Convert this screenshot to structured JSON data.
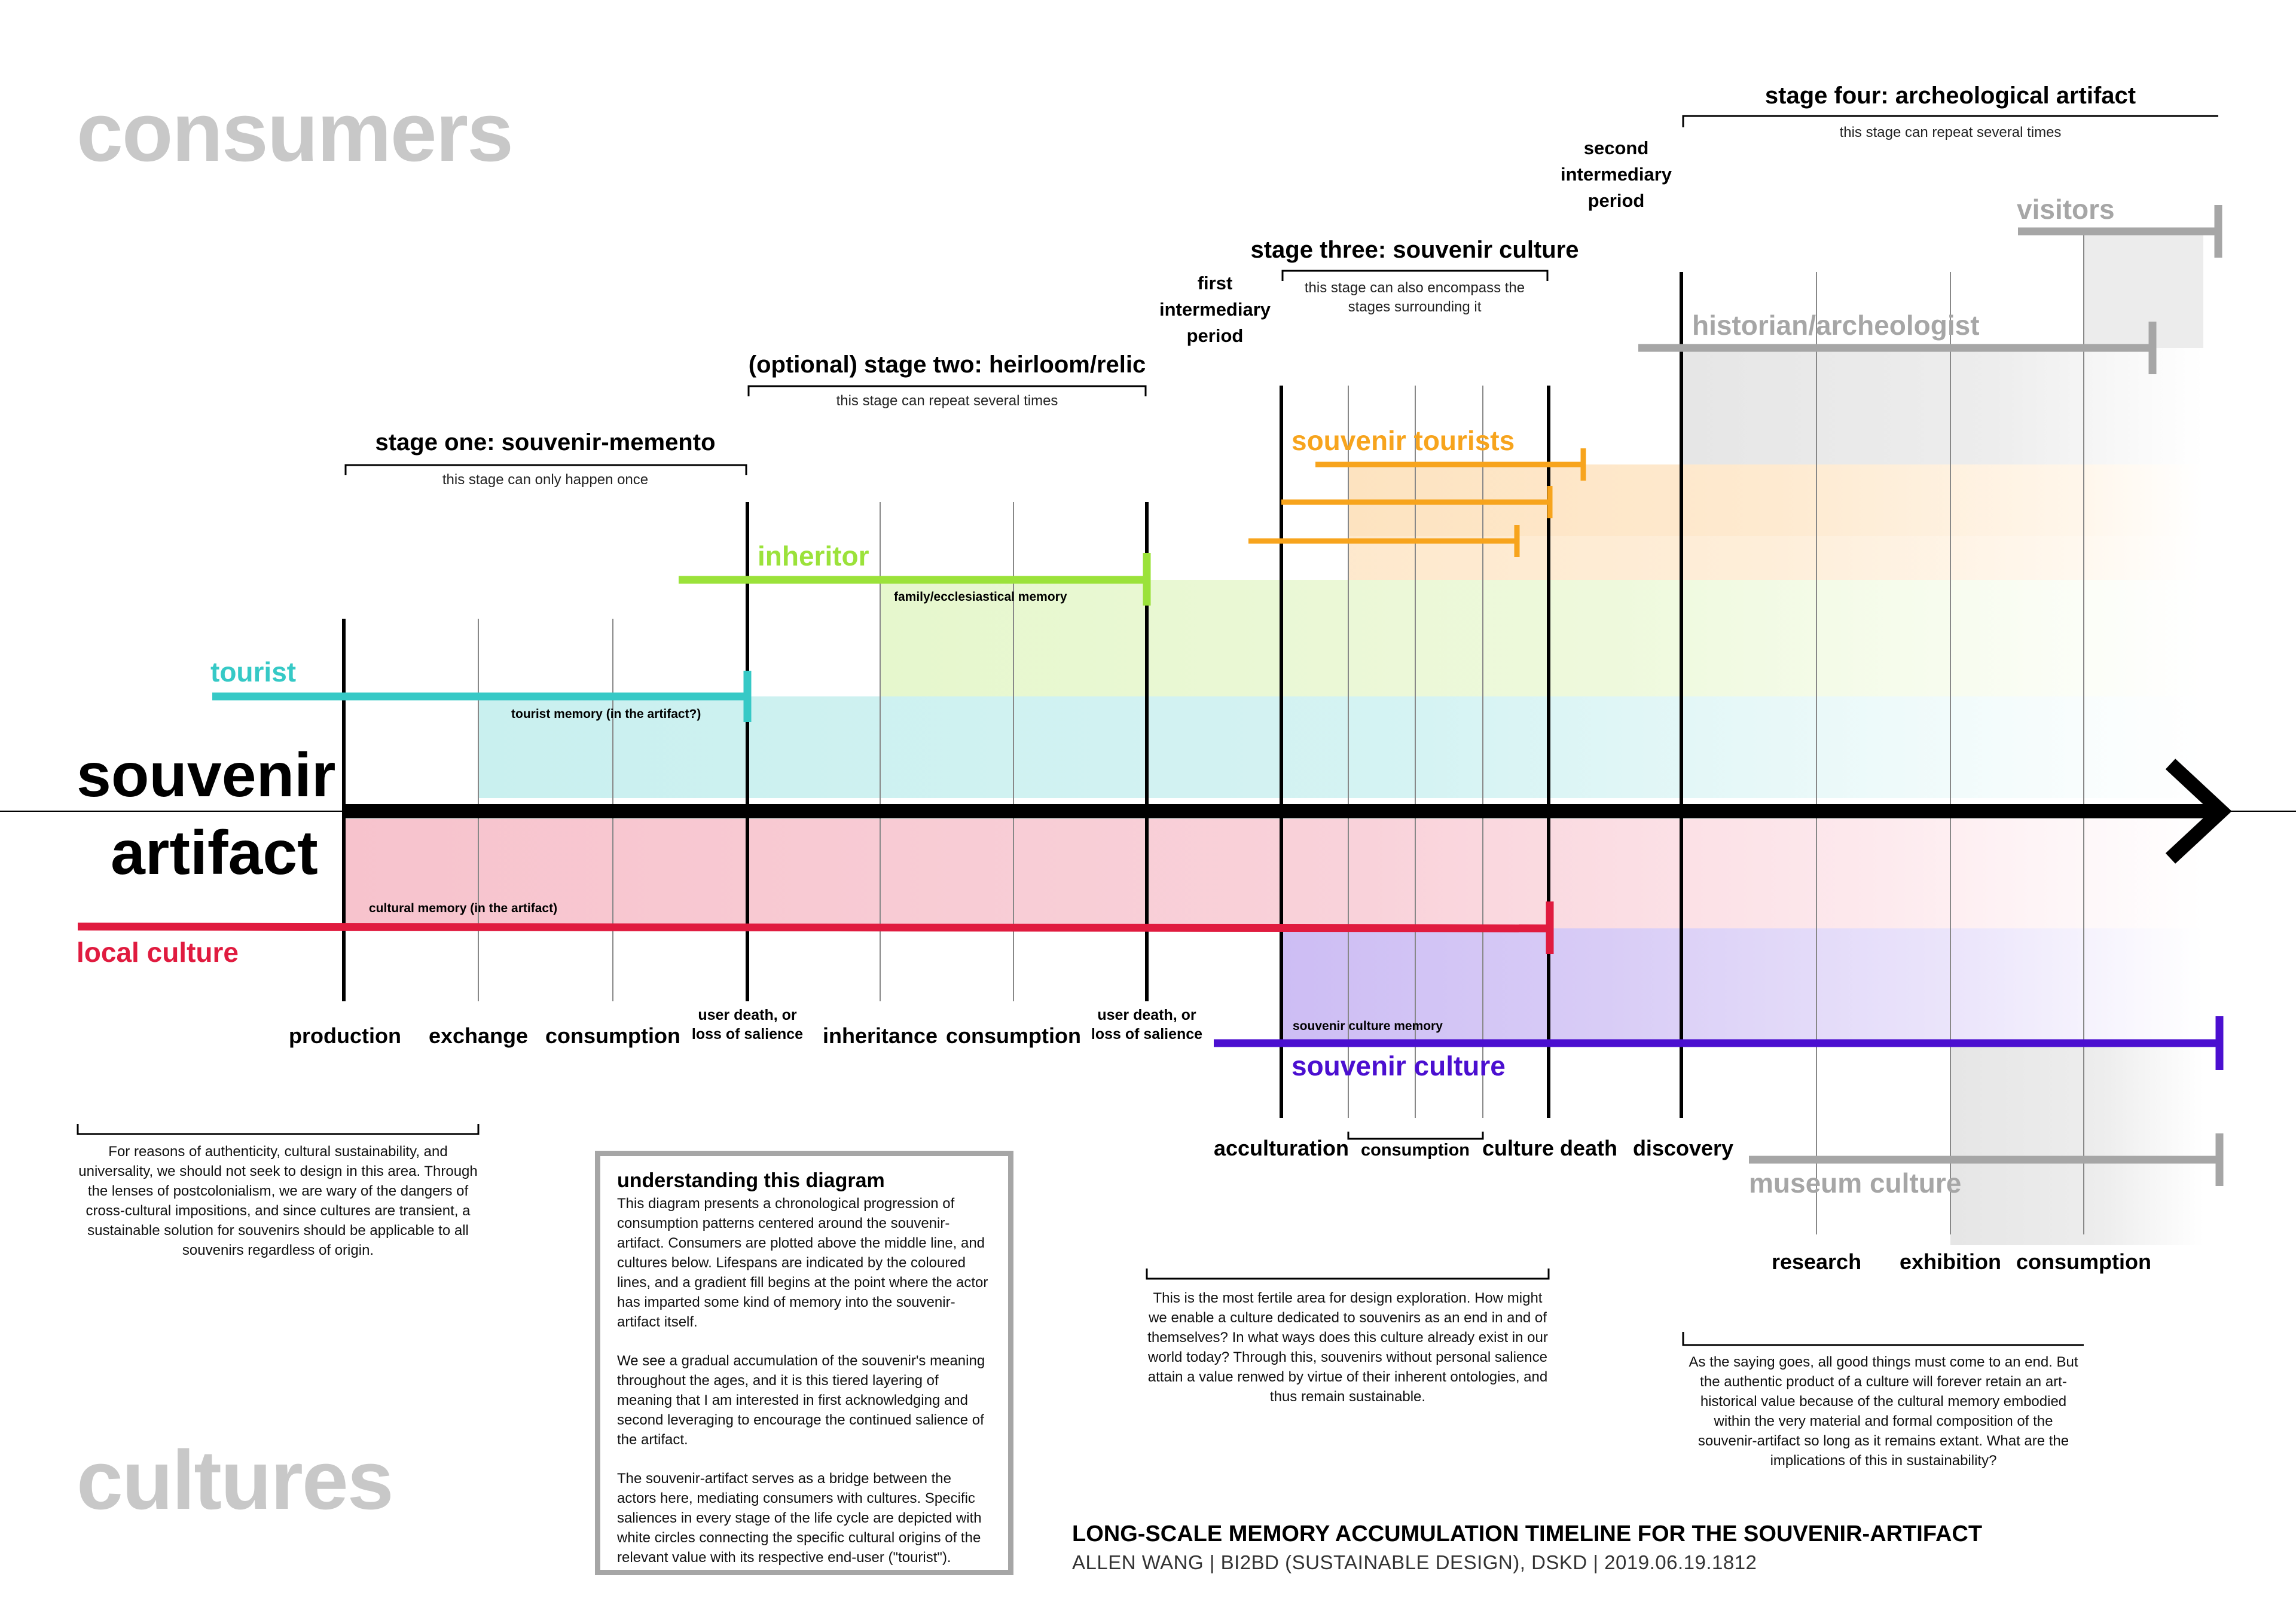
{
  "headings": {
    "consumers": "consumers",
    "cultures": "cultures",
    "artifact_line1": "souvenir",
    "artifact_line2": "artifact"
  },
  "stages": [
    {
      "title": "stage one: souvenir-memento",
      "note": "this stage can only happen once"
    },
    {
      "title": "(optional) stage two: heirloom/relic",
      "note": "this stage can repeat several times"
    },
    {
      "title": "stage three: souvenir culture",
      "note": "this stage can also encompass the stages surrounding it"
    },
    {
      "title": "stage four: archeological artifact",
      "note": "this stage can repeat several times"
    }
  ],
  "periods": {
    "first": "first intermediary period",
    "second": "second intermediary period"
  },
  "actors": {
    "tourist": "tourist",
    "inheritor": "inheritor",
    "souvenir_tourists": "souvenir tourists",
    "historian": "historian/archeologist",
    "visitors": "visitors",
    "local_culture": "local culture",
    "souvenir_culture": "souvenir culture",
    "museum_culture": "museum culture"
  },
  "memories": {
    "tourist": "tourist memory (in the artifact?)",
    "family": "family/ecclesiastical memory",
    "cultural": "cultural memory (in the artifact)",
    "souvenir_culture": "souvenir culture memory"
  },
  "axis_labels": {
    "production": "production",
    "exchange": "exchange",
    "consumption1": "consumption",
    "user_death1": "user death, or loss of salience",
    "inheritance": "inheritance",
    "consumption2": "consumption",
    "user_death2": "user death, or loss of salience",
    "acculturation": "acculturation",
    "consumption3": "consumption",
    "culture_death": "culture death",
    "discovery": "discovery",
    "research": "research",
    "exhibition": "exhibition",
    "consumption4": "consumption"
  },
  "notes": {
    "left": "For reasons of authenticity, cultural sustainability, and universality, we should not seek to design in this area. Through the lenses of postcolonialism, we are wary of the dangers of cross-cultural impositions, and since cultures are transient, a sustainable solution for souvenirs should be applicable to all souvenirs regardless of origin.",
    "middle": "This is the most fertile area for design exploration. How might we enable a culture dedicated to souvenirs as an end in and of themselves? In what ways does this culture already exist in our world today? Through this, souvenirs without personal salience attain a value renwed by virtue of their inherent ontologies, and thus remain sustainable.",
    "right": "As the saying goes, all good things must come to an end. But the authentic product of a culture will forever retain an art-historical value because of the cultural memory embodied within the very material and formal composition of the souvenir-artifact so long as it remains extant. What are the implications of this in sustainability?"
  },
  "understanding_box": {
    "title": "understanding this diagram",
    "p1": "This diagram presents a chronological progression of consumption patterns centered around the souvenir-artifact. Consumers are plotted above the middle line, and cultures below. Lifespans are indicated by the coloured lines, and a gradient fill begins at the point where the actor has imparted some kind of memory into the souvenir-artifact itself.",
    "p2": "We see a gradual accumulation of the souvenir's meaning throughout the ages, and it is this tiered layering of meaning that I am interested in first acknowledging and second leveraging to encourage the continued salience of the artifact.",
    "p3": "The souvenir-artifact serves as a bridge between the actors here, mediating consumers with cultures. Specific saliences in every stage of the life cycle are depicted with white circles connecting the specific cultural origins of the relevant value with its respective end-user (\"tourist\")."
  },
  "footer": {
    "title": "LONG-SCALE MEMORY ACCUMULATION TIMELINE FOR THE SOUVENIR-ARTIFACT",
    "subtitle": "ALLEN WANG | BI2BD (SUSTAINABLE DESIGN), DSKD | 2019.06.19.1812"
  },
  "colors": {
    "tourist": "#36c9c6",
    "inheritor": "#9be23a",
    "souvenir_tourists": "#f7a41d",
    "historian": "#a6a6a6",
    "local_culture": "#e01b3f",
    "souvenir_culture": "#4b0fd0",
    "axis": "#000000"
  }
}
